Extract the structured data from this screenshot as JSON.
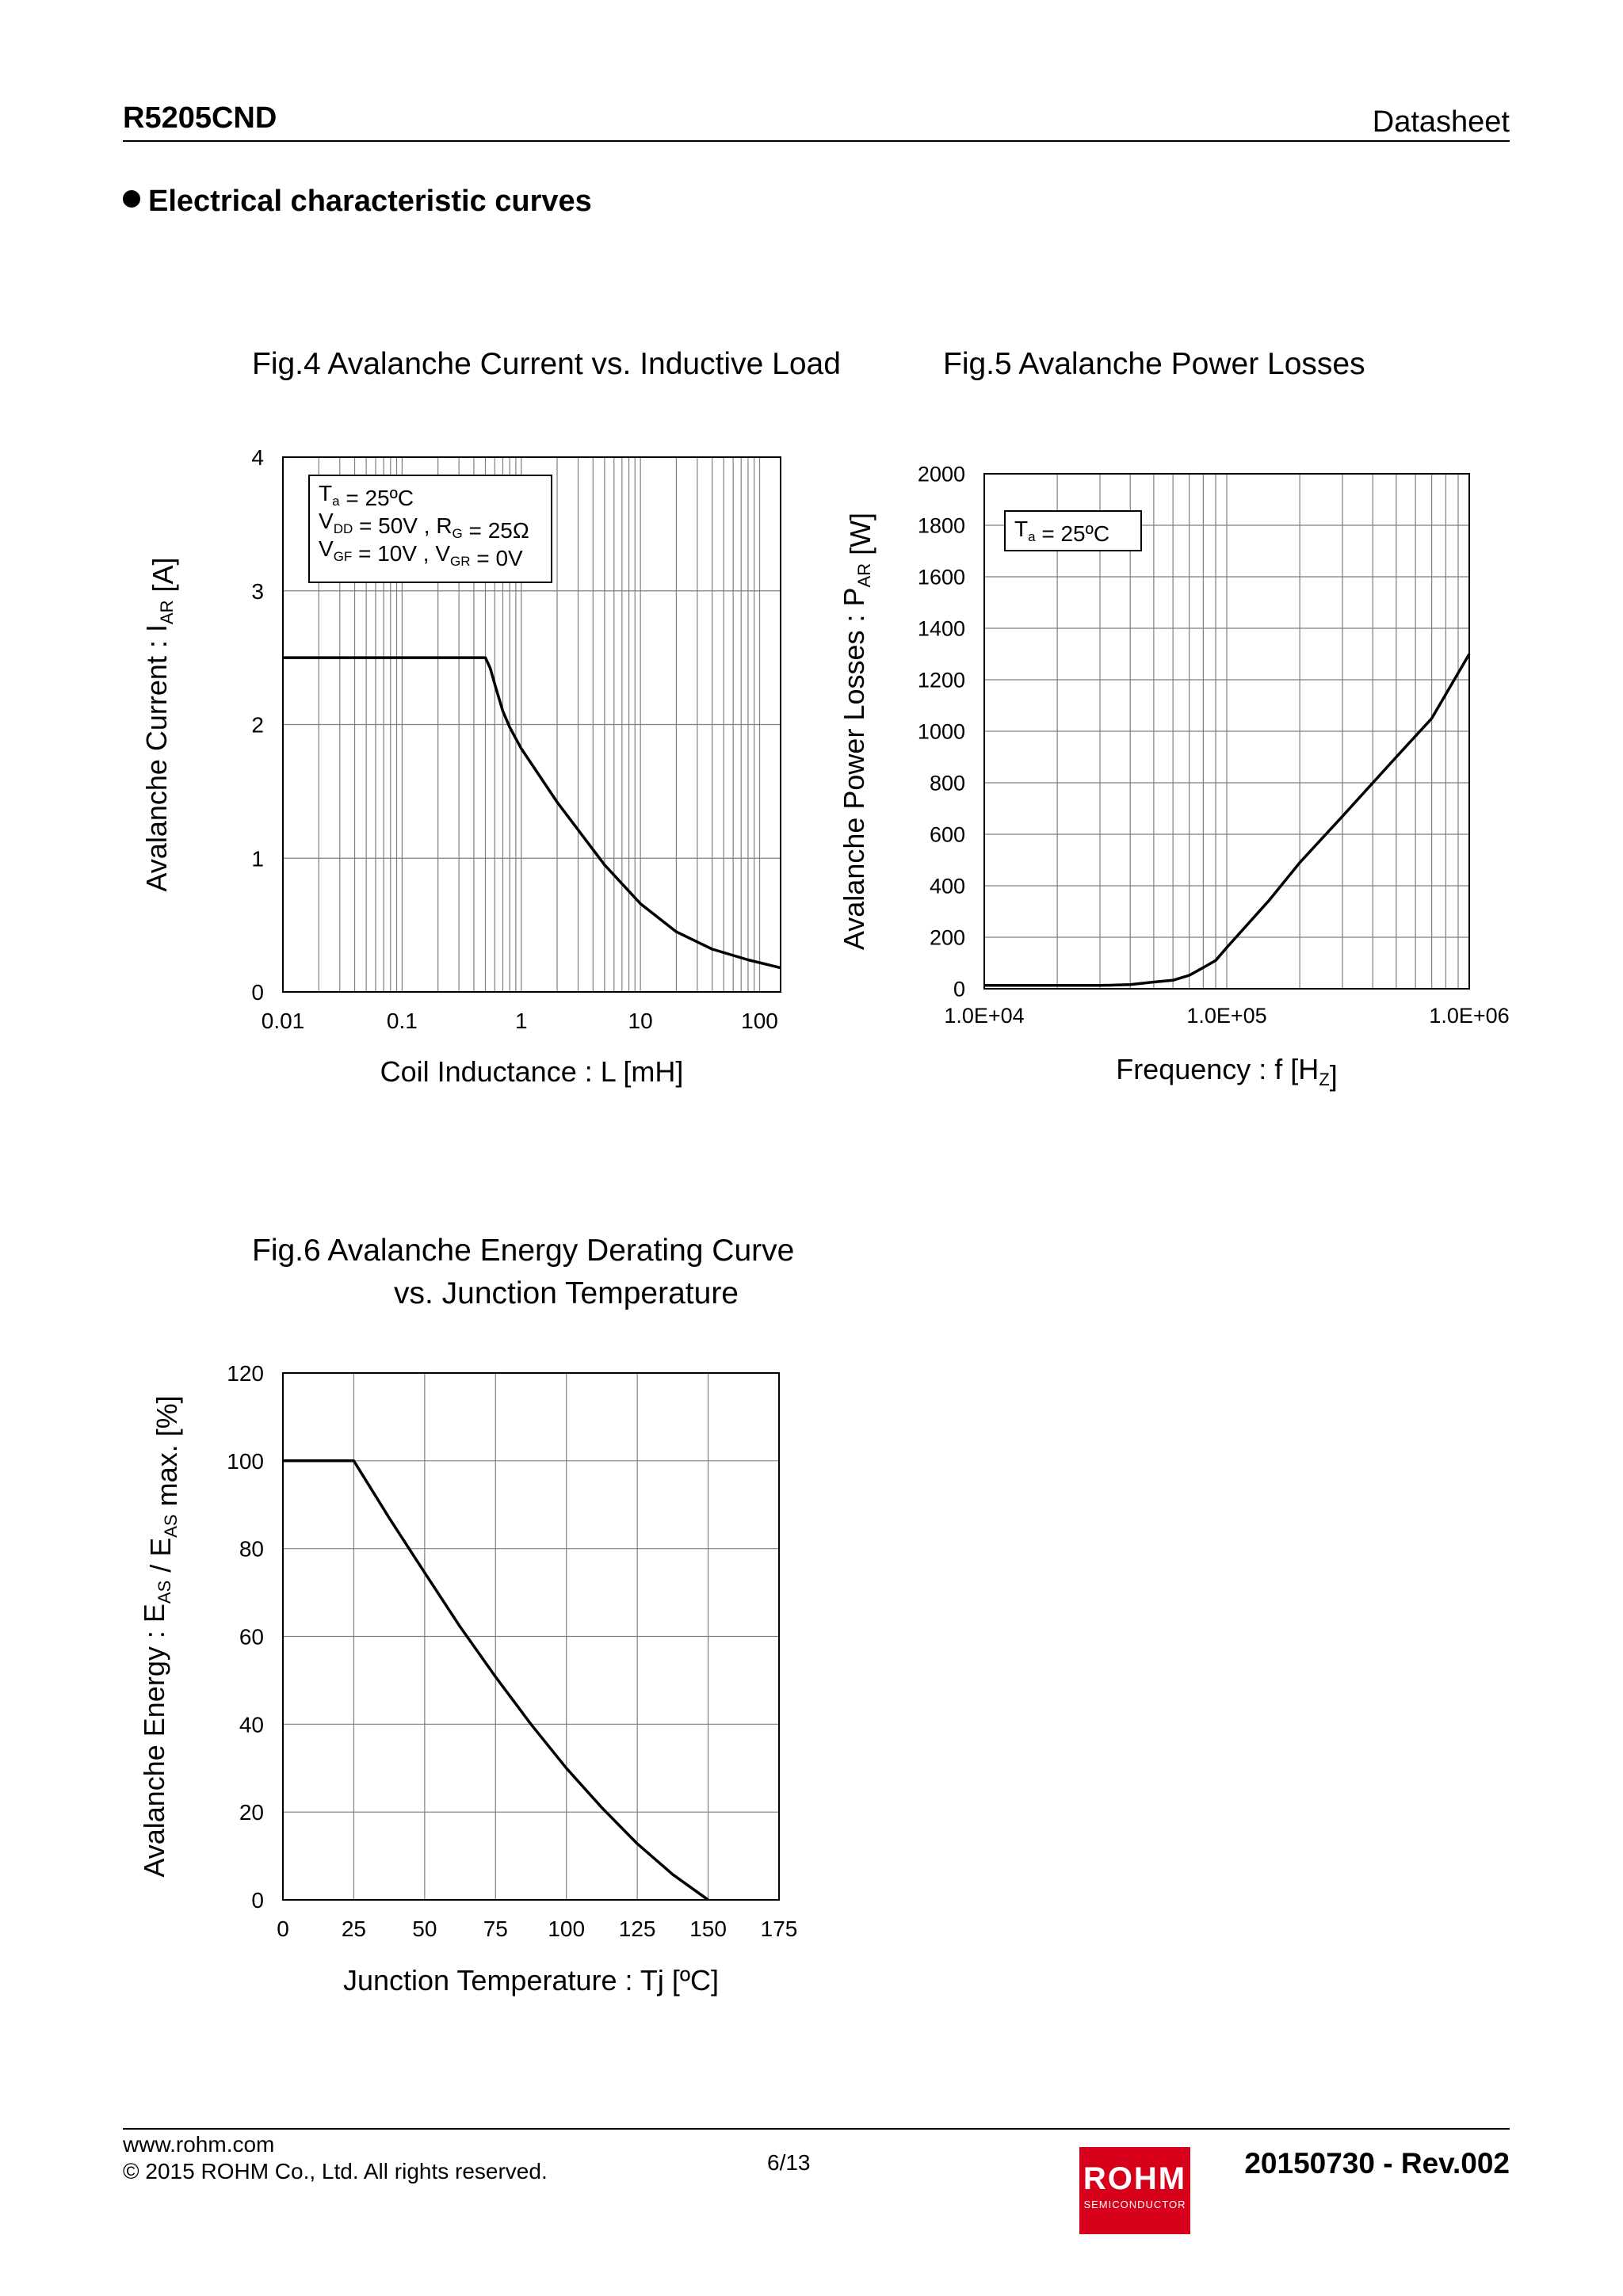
{
  "header": {
    "part": "R5205CND",
    "doc": "Datasheet"
  },
  "section_title": "Electrical characteristic curves",
  "footer": {
    "url": "www.rohm.com",
    "copyright": "© 2015 ROHM Co., Ltd. All rights reserved.",
    "page": "6/13",
    "revision": "20150730 - Rev.002",
    "logo_text": "ROHM",
    "logo_subtext": "SEMICONDUCTOR",
    "brand_color": "#d7001a"
  },
  "chart_data": [
    {
      "id": "fig4",
      "type": "line",
      "title": "Fig.4 Avalanche Current vs. Inductive Load",
      "xlabel": "Coil Inductance : L [mH]",
      "ylabel_parts": [
        "Avalanche Current : I",
        "AR",
        " [A]"
      ],
      "xscale": "log",
      "xlim": [
        0.01,
        150
      ],
      "ylim": [
        0,
        4
      ],
      "xticks": [
        0.01,
        0.1,
        1,
        10,
        100
      ],
      "xtick_labels": [
        "0.01",
        "0.1",
        "1",
        "10",
        "100"
      ],
      "yticks": [
        0,
        1,
        2,
        3,
        4
      ],
      "ytick_labels": [
        "0",
        "1",
        "2",
        "3",
        "4"
      ],
      "grid": true,
      "annotation": [
        [
          [
            "T",
            ""
          ],
          [
            "a",
            "sub"
          ],
          [
            " = 25ºC",
            ""
          ]
        ],
        [
          [
            "V",
            ""
          ],
          [
            "DD",
            "sub"
          ],
          [
            " = 50V , R",
            ""
          ],
          [
            "G",
            "sub"
          ],
          [
            " = 25Ω",
            ""
          ]
        ],
        [
          [
            "V",
            ""
          ],
          [
            "GF",
            "sub"
          ],
          [
            " = 10V , V",
            ""
          ],
          [
            "GR",
            "sub"
          ],
          [
            " = 0V",
            ""
          ]
        ]
      ],
      "series": [
        {
          "name": "IAR",
          "x": [
            0.01,
            0.1,
            0.5,
            0.55,
            0.6,
            0.7,
            0.8,
            1,
            2,
            5,
            10,
            20,
            40,
            80,
            150
          ],
          "y": [
            2.5,
            2.5,
            2.5,
            2.42,
            2.3,
            2.1,
            1.98,
            1.82,
            1.42,
            0.95,
            0.66,
            0.45,
            0.32,
            0.24,
            0.18
          ]
        }
      ]
    },
    {
      "id": "fig5",
      "type": "line",
      "title": "Fig.5 Avalanche Power Losses",
      "xlabel_parts": [
        "Frequency : f [H",
        "Z",
        "]"
      ],
      "ylabel_parts": [
        "Avalanche Power Losses : P",
        "AR",
        " [W]"
      ],
      "xscale": "log",
      "xlim": [
        10000,
        1000000
      ],
      "ylim": [
        0,
        2000
      ],
      "xticks": [
        10000,
        100000,
        1000000
      ],
      "xtick_labels": [
        "1.0E+04",
        "1.0E+05",
        "1.0E+06"
      ],
      "yticks": [
        0,
        200,
        400,
        600,
        800,
        1000,
        1200,
        1400,
        1600,
        1800,
        2000
      ],
      "ytick_labels": [
        "0",
        "200",
        "400",
        "600",
        "800",
        "1000",
        "1200",
        "1400",
        "1600",
        "1800",
        "2000"
      ],
      "grid": true,
      "annotation": [
        [
          [
            "T",
            ""
          ],
          [
            "a",
            "sub"
          ],
          [
            " = 25ºC",
            ""
          ]
        ]
      ],
      "series": [
        {
          "name": "PAR",
          "x": [
            10000,
            20000,
            30000,
            40000,
            50000,
            60000,
            70000,
            80000,
            90000,
            100000,
            150000,
            200000,
            300000,
            500000,
            700000,
            1000000
          ],
          "y": [
            13,
            13,
            13,
            16,
            26,
            33,
            52,
            82,
            110,
            160,
            345,
            490,
            670,
            900,
            1050,
            1300
          ]
        }
      ]
    },
    {
      "id": "fig6",
      "type": "line",
      "title": "Fig.6 Avalanche Energy Derating Curve",
      "title2": "vs. Junction Temperature",
      "xlabel": "Junction Temperature : Tj [ºC]",
      "ylabel_parts": [
        "Avalanche Energy : E",
        "AS",
        " / E",
        "AS",
        " max. [%]"
      ],
      "xscale": "linear",
      "xlim": [
        0,
        175
      ],
      "ylim": [
        0,
        120
      ],
      "xticks": [
        0,
        25,
        50,
        75,
        100,
        125,
        150,
        175
      ],
      "xtick_labels": [
        "0",
        "25",
        "50",
        "75",
        "100",
        "125",
        "150",
        "175"
      ],
      "yticks": [
        0,
        20,
        40,
        60,
        80,
        100,
        120
      ],
      "ytick_labels": [
        "0",
        "20",
        "40",
        "60",
        "80",
        "100",
        "120"
      ],
      "grid": true,
      "series": [
        {
          "name": "EAS",
          "x": [
            0,
            25,
            37.5,
            50,
            62.5,
            75,
            87.5,
            100,
            112.5,
            125,
            137.5,
            150
          ],
          "y": [
            100,
            100,
            87,
            74.5,
            62.2,
            50.8,
            40,
            30,
            21,
            12.8,
            5.8,
            0
          ]
        }
      ]
    }
  ]
}
